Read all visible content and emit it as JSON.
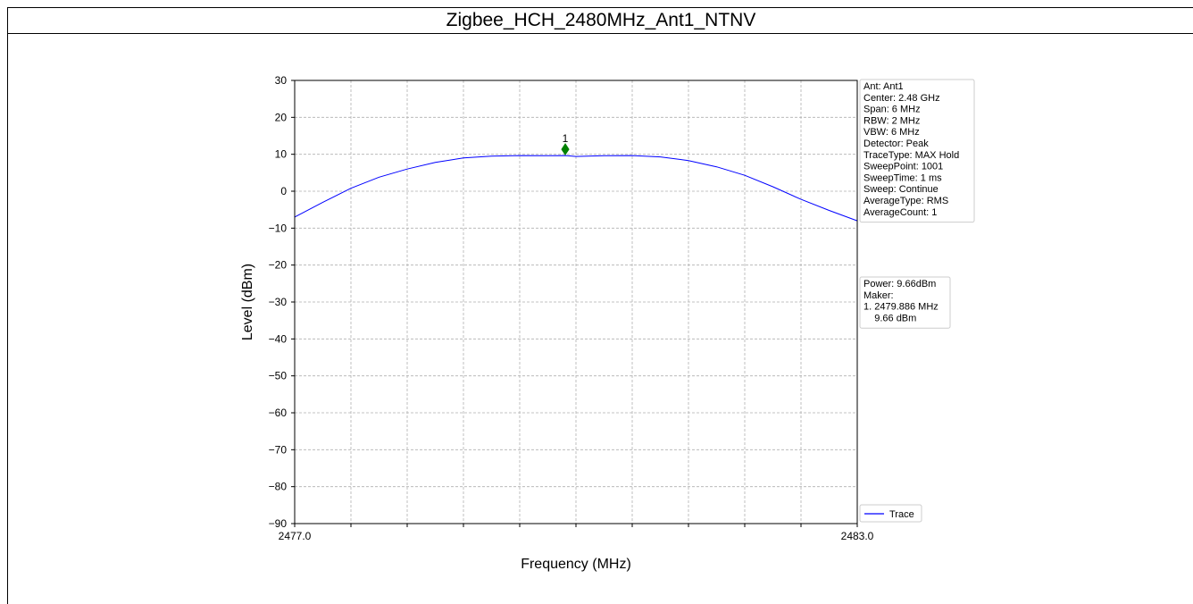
{
  "page": {
    "title": "Zigbee_HCH_2480MHz_Ant1_NTNV"
  },
  "chart_data": {
    "type": "line",
    "xlabel": "Frequency (MHz)",
    "ylabel": "Level (dBm)",
    "xlim": [
      2477.0,
      2483.0
    ],
    "ylim": [
      -90,
      30
    ],
    "x_tick_labels": [
      "2477.0",
      "2483.0"
    ],
    "x_minor_ticks": [
      2477.6,
      2478.2,
      2478.8,
      2479.4,
      2480.0,
      2480.6,
      2481.2,
      2481.8,
      2482.4
    ],
    "y_ticks": [
      30,
      20,
      10,
      0,
      -10,
      -20,
      -30,
      -40,
      -50,
      -60,
      -70,
      -80,
      -90
    ],
    "y_tick_labels": [
      "30",
      "20",
      "10",
      "0",
      "−10",
      "−20",
      "−30",
      "−40",
      "−50",
      "−60",
      "−70",
      "−80",
      "−90"
    ],
    "grid": true,
    "series": [
      {
        "name": "Trace",
        "color": "#0000ff",
        "x": [
          2477.0,
          2477.3,
          2477.6,
          2477.9,
          2478.2,
          2478.5,
          2478.8,
          2479.1,
          2479.4,
          2479.7,
          2479.886,
          2480.0,
          2480.3,
          2480.6,
          2480.9,
          2481.2,
          2481.5,
          2481.8,
          2482.1,
          2482.4,
          2482.7,
          2483.0
        ],
        "y": [
          -7.0,
          -3.0,
          0.8,
          3.8,
          6.0,
          7.8,
          9.0,
          9.5,
          9.66,
          9.6,
          9.66,
          9.4,
          9.6,
          9.66,
          9.3,
          8.3,
          6.6,
          4.3,
          1.2,
          -2.2,
          -5.2,
          -8.0
        ]
      }
    ],
    "marker": {
      "label": "1",
      "x": 2479.886,
      "y": 9.66,
      "color": "#008000"
    },
    "info_box": [
      "Ant: Ant1",
      "Center: 2.48 GHz",
      "Span: 6 MHz",
      "RBW: 2 MHz",
      "VBW: 6 MHz",
      "Detector: Peak",
      "TraceType: MAX Hold",
      "SweepPoint: 1001",
      "SweepTime: 1 ms",
      "Sweep: Continue",
      "AverageType: RMS",
      "AverageCount: 1"
    ],
    "power_box": [
      "Power: 9.66dBm",
      "Maker:",
      "1. 2479.886 MHz",
      "    9.66 dBm"
    ],
    "legend": {
      "placement": "bottom-right-outside",
      "entries": [
        "Trace"
      ]
    }
  }
}
